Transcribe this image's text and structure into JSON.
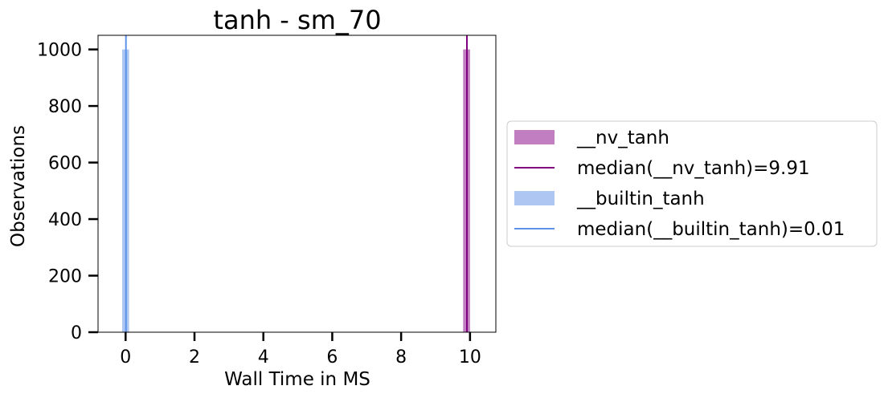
{
  "chart_data": {
    "type": "bar",
    "title": "tanh - sm_70",
    "xlabel": "Wall Time in MS",
    "ylabel": "Observations",
    "xlim": [
      -0.8,
      10.75
    ],
    "ylim": [
      0,
      1050
    ],
    "xticks": [
      0,
      2,
      4,
      6,
      8,
      10
    ],
    "yticks": [
      0,
      200,
      400,
      600,
      800,
      1000
    ],
    "legend_position": "center-right-outside",
    "series": [
      {
        "name": "__nv_tanh",
        "kind": "histogram",
        "color": "#c17fc1",
        "bins": [
          {
            "x0": 9.8,
            "x1": 10.0,
            "count": 1000
          }
        ]
      },
      {
        "name": "median(__nv_tanh)=9.91",
        "kind": "median-line",
        "color": "#800080",
        "x": 9.91
      },
      {
        "name": "__builtin_tanh",
        "kind": "histogram",
        "color": "#aec7f2",
        "bins": [
          {
            "x0": -0.1,
            "x1": 0.1,
            "count": 1000
          }
        ]
      },
      {
        "name": "median(__builtin_tanh)=0.01",
        "kind": "median-line",
        "color": "#5b93ea",
        "x": 0.01
      }
    ]
  }
}
